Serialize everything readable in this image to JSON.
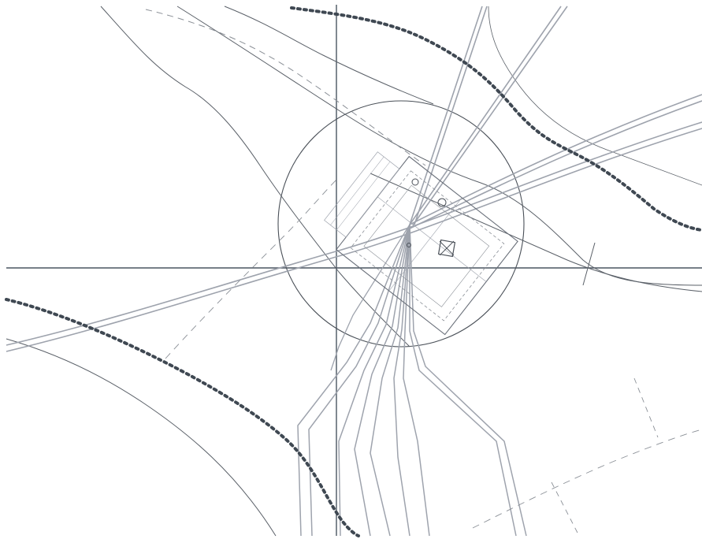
{
  "drawing": {
    "colors": {
      "background": "#ffffff",
      "axis": "#4a5560",
      "circle": "#4a5058",
      "thin_line": "#5a6068",
      "dashed_line": "#8a8f96",
      "pipe_bundle": "#9ea3ad",
      "contour": "#3f4852",
      "building": "#6a707a"
    }
  }
}
